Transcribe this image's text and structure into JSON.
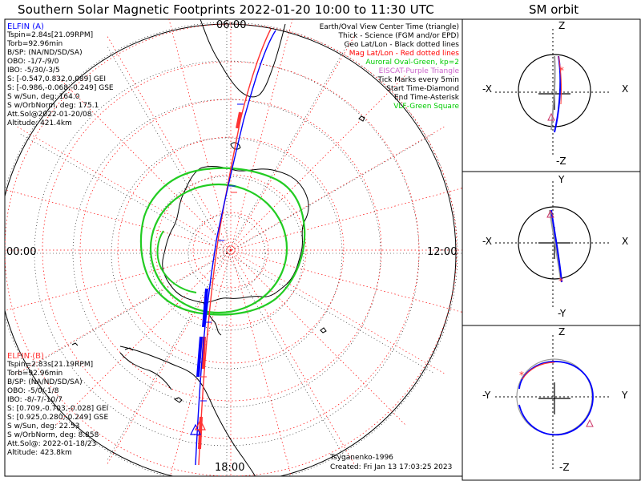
{
  "title": "Southern Solar Magnetic Footprints 2022-01-20 10:00 to 11:30 UTC",
  "sm_orbit_title": "SM orbit",
  "map": {
    "hour_labels": {
      "top": "06:00",
      "left": "00:00",
      "right": "12:00",
      "bottom": "18:00"
    },
    "legend": [
      {
        "text": "Earth/Oval View Center Time (triangle)",
        "color": "#000000"
      },
      {
        "text": "Thick - Science (FGM and/or EPD)",
        "color": "#000000"
      },
      {
        "text": "Geo Lat/Lon - Black dotted lines",
        "color": "#000000"
      },
      {
        "text": "Mag Lat/Lon - Red dotted lines",
        "color": "#ff0000"
      },
      {
        "text": "Auroral Oval-Green, kp=2",
        "color": "#00cc00"
      },
      {
        "text": "EISCAT-Purple Triangle",
        "color": "#cc66cc"
      },
      {
        "text": "Tick Marks every 5min",
        "color": "#000000"
      },
      {
        "text": "Start Time-Diamond",
        "color": "#000000"
      },
      {
        "text": "End Time-Asterisk",
        "color": "#000000"
      },
      {
        "text": "VLF-Green Square",
        "color": "#00cc00"
      }
    ],
    "elfin_a": {
      "name": "ELFIN (A)",
      "color": "#0000ff",
      "lines": [
        "Tspin=2.84s[21.09RPM]",
        "Torb=92.96min",
        "B/SP: (NA/ND/SD/SA)",
        "OBO: -1/7-/9/0",
        "IBO: -5/30/-3/5",
        "S: [-0.547,0.832,0.089] GEI",
        "S: [-0.986,-0.068,-0.249] GSE",
        "S w/Sun, deg: 164.0",
        "S w/OrbNorm, deg: 175.1",
        "Att.Sol@2022-01-20/08",
        "Altitude: 421.4km"
      ]
    },
    "elfin_b": {
      "name": "ELFIN (B)",
      "color": "#ff3333",
      "lines": [
        "Tspin=2.83s[21.19RPM]",
        "Torb=92.96min",
        "B/SP: (NA/ND/SD/SA)",
        "OBO: -5/0/-1/8",
        "IBO: -8/-7/-10/7",
        "S: [0.709,-0.703,-0.028] GEI",
        "S: [0.925,0.280,-0.249] GSE",
        "S w/Sun, deg: 22.53",
        "S w/OrbNorm, deg: 8.858",
        "Att.Sol@: 2022-01-18/23",
        "Altitude: 423.8km"
      ]
    },
    "credit": "Tsyganenko-1996",
    "created": "Created: Fri Jan 13 17:03:25 2023"
  },
  "chart_data": [
    {
      "type": "scatter",
      "title": "Southern Solar Magnetic Footprints 2022-01-20 10:00 to 11:30 UTC",
      "projection": "south polar, magnetic local time",
      "hour_labels": [
        "06:00",
        "00:00",
        "12:00",
        "18:00"
      ],
      "series": [
        {
          "name": "ELFIN (A)",
          "color": "#0000ff"
        },
        {
          "name": "ELFIN (B)",
          "color": "#ff3333"
        }
      ],
      "auroral_oval_kp": 2,
      "grid": true
    },
    {
      "type": "line",
      "title": "SM orbit",
      "panels": [
        {
          "h_axis": [
            "-X",
            "X"
          ],
          "v_axis": [
            "-Z",
            "Z"
          ]
        },
        {
          "h_axis": [
            "-X",
            "X"
          ],
          "v_axis": [
            "-Y",
            "Y"
          ]
        },
        {
          "h_axis": [
            "-Y",
            "Y"
          ],
          "v_axis": [
            "-Z",
            "Z"
          ]
        }
      ],
      "series": [
        {
          "name": "ELFIN (A)",
          "color": "#0000ff"
        },
        {
          "name": "ELFIN (B)",
          "color": "#ff3333"
        }
      ]
    }
  ],
  "orbit_panels": [
    {
      "top": "Z",
      "bottom": "-Z",
      "left": "-X",
      "right": "X"
    },
    {
      "top": "Y",
      "bottom": "-Y",
      "left": "-X",
      "right": "X"
    },
    {
      "top": "Z",
      "bottom": "-Z",
      "left": "-Y",
      "right": "Y"
    }
  ]
}
